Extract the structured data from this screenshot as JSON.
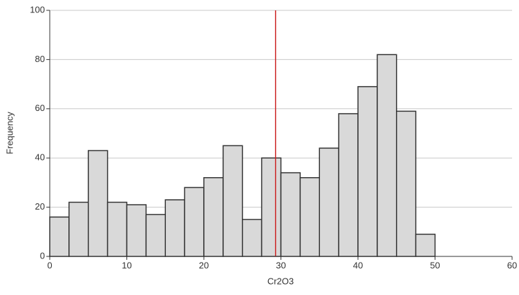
{
  "chart_data": {
    "type": "histogram",
    "x_label": "Cr2O3",
    "y_label": "Frequency",
    "bins": [
      0,
      2.5,
      5,
      7.5,
      10,
      12.5,
      15,
      17.5,
      20,
      22.5,
      25,
      27.5,
      30,
      32.5,
      35,
      37.5,
      40,
      42.5,
      45,
      47.5,
      50
    ],
    "values": [
      16,
      22,
      43,
      22,
      21,
      17,
      23,
      28,
      32,
      45,
      15,
      40,
      34,
      32,
      44,
      58,
      69,
      82,
      59,
      9
    ],
    "color": "#d9d9d9",
    "edge_color": "#333333",
    "xlim": [
      0,
      60
    ],
    "xticks": [
      0,
      10,
      20,
      30,
      40,
      50,
      60
    ],
    "ylim": [
      0,
      100
    ],
    "yticks": [
      0,
      20,
      40,
      60,
      80,
      100
    ],
    "grid": true,
    "vline": {
      "x": 29.3,
      "color": "#cc2222"
    }
  }
}
